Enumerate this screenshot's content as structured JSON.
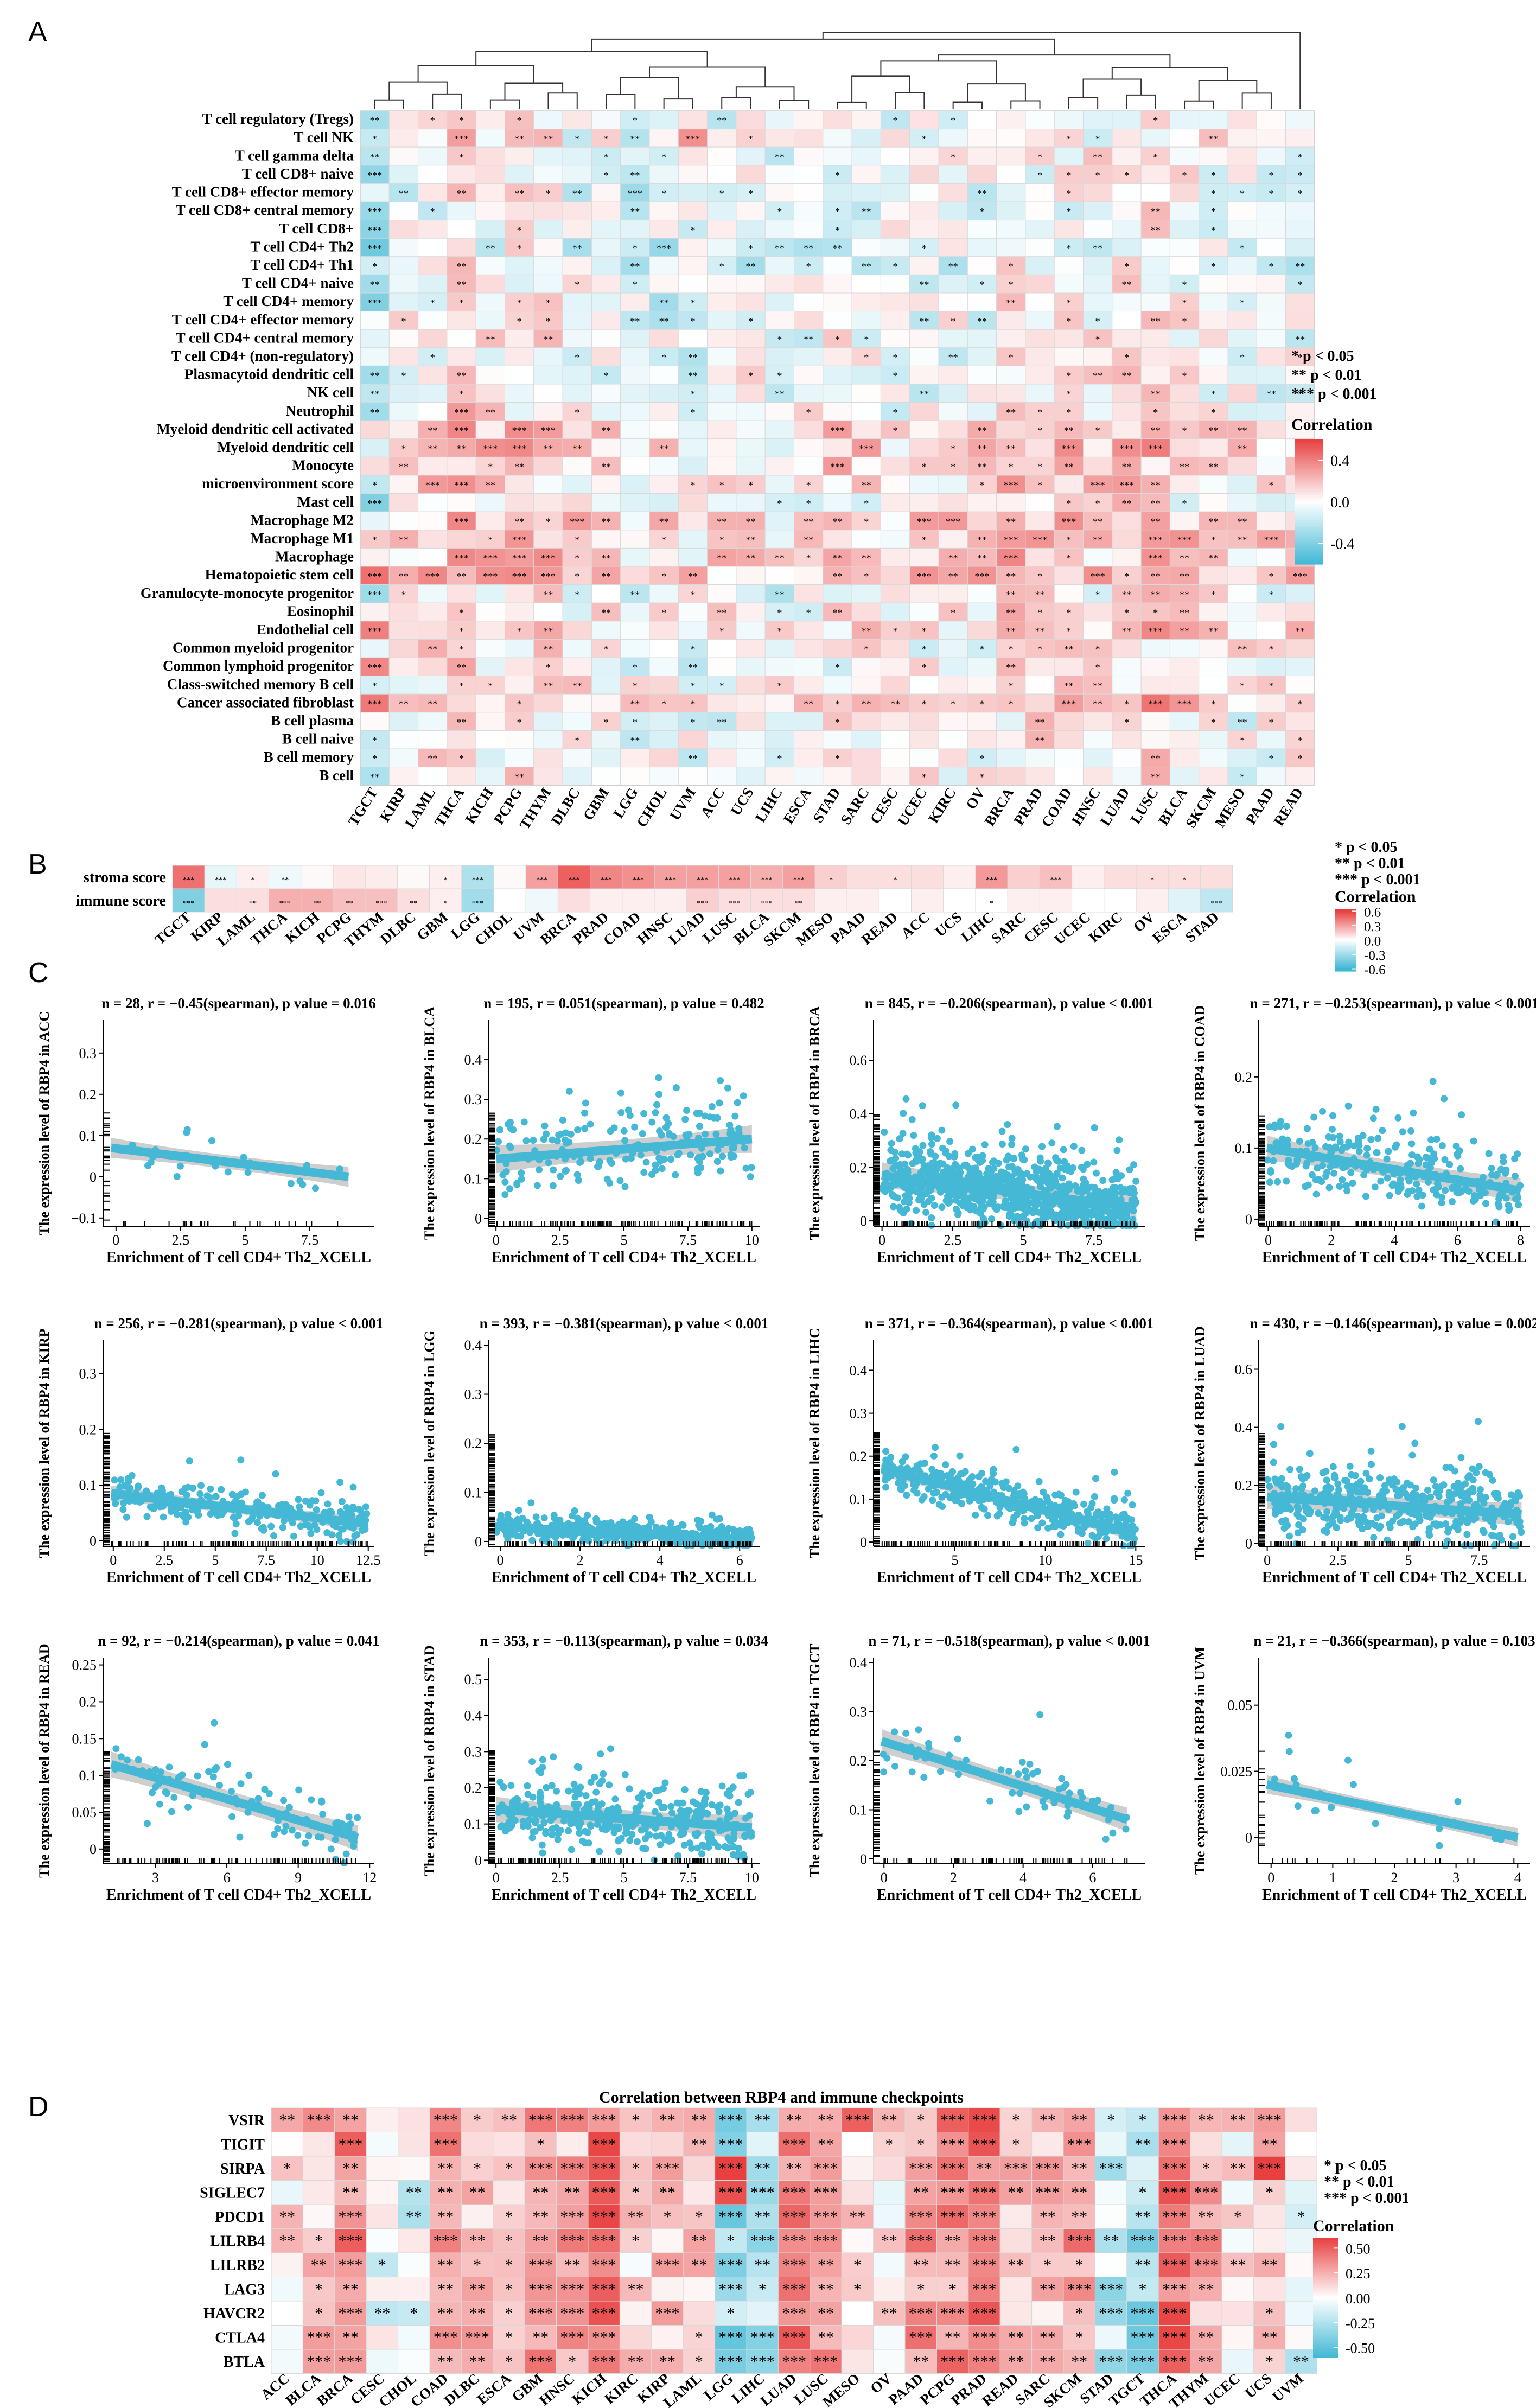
{
  "figure": {
    "panel_labels": [
      "A",
      "B",
      "C",
      "D"
    ],
    "sig_legend": [
      "*  p < 0.05",
      "**  p < 0.01",
      "***  p < 0.001"
    ]
  },
  "chart_data": [
    {
      "panel": "A",
      "type": "heatmap",
      "title": "",
      "legend_title": "Correlation",
      "legend_ticks": [
        "0.4",
        "0.0",
        "-0.4"
      ],
      "value_range": [
        -0.6,
        0.6
      ],
      "cancers": [
        "TGCT",
        "KIRP",
        "LAML",
        "THCA",
        "KICH",
        "PCPG",
        "THYM",
        "DLBC",
        "GBM",
        "LGG",
        "CHOL",
        "UVM",
        "ACC",
        "UCS",
        "LIHC",
        "ESCA",
        "STAD",
        "SARC",
        "CESC",
        "UCEC",
        "KIRC",
        "OV",
        "BRCA",
        "PRAD",
        "COAD",
        "HNSC",
        "LUAD",
        "LUSC",
        "BLCA",
        "SKCM",
        "MESO",
        "PAAD",
        "READ"
      ],
      "cell_types": [
        "T cell regulatory (Tregs)",
        "T cell NK",
        "T cell gamma delta",
        "T cell CD8+ naive",
        "T cell CD8+ effector memory",
        "T cell CD8+ central memory",
        "T cell CD8+",
        "T cell CD4+ Th2",
        "T cell CD4+ Th1",
        "T cell CD4+ naive",
        "T cell CD4+ memory",
        "T cell CD4+ effector memory",
        "T cell CD4+ central memory",
        "T cell CD4+ (non-regulatory)",
        "Plasmacytoid dendritic cell",
        "NK cell",
        "Neutrophil",
        "Myeloid dendritic cell activated",
        "Myeloid dendritic cell",
        "Monocyte",
        "microenvironment score",
        "Mast cell",
        "Macrophage M2",
        "Macrophage M1",
        "Macrophage",
        "Hematopoietic stem cell",
        "Granulocyte-monocyte progenitor",
        "Eosinophil",
        "Endothelial cell",
        "Common myeloid progenitor",
        "Common lymphoid progenitor",
        "Class-switched memory B cell",
        "Cancer associated fibroblast",
        "B cell plasma",
        "B cell naive",
        "B cell memory",
        "B cell"
      ],
      "row_bias": [
        -0.05,
        -0.02,
        0.0,
        -0.05,
        -0.08,
        -0.06,
        -0.06,
        -0.1,
        -0.1,
        -0.05,
        -0.06,
        -0.03,
        -0.03,
        -0.02,
        -0.02,
        -0.05,
        0.0,
        0.12,
        0.12,
        0.1,
        0.08,
        -0.02,
        0.14,
        0.12,
        0.12,
        0.18,
        0.0,
        0.03,
        0.1,
        0.02,
        -0.02,
        0.05,
        0.16,
        -0.02,
        -0.02,
        -0.01,
        -0.01
      ],
      "col_bias": [
        -0.12,
        0.03,
        0.05,
        0.14,
        0.06,
        0.1,
        0.08,
        0.0,
        0.0,
        -0.06,
        -0.05,
        -0.04,
        0.0,
        0.0,
        -0.06,
        0.0,
        0.04,
        0.02,
        0.0,
        0.0,
        0.0,
        0.0,
        0.1,
        0.08,
        0.06,
        0.04,
        0.1,
        0.1,
        0.06,
        0.04,
        0.0,
        0.02,
        0.0
      ],
      "fixed_cells": [
        {
          "row": 25,
          "col": 0,
          "value": 0.45
        },
        {
          "row": 28,
          "col": 0,
          "value": 0.4
        },
        {
          "row": 32,
          "col": 0,
          "value": 0.42
        },
        {
          "row": 30,
          "col": 0,
          "value": 0.38
        },
        {
          "row": 3,
          "col": 0,
          "value": -0.35
        },
        {
          "row": 7,
          "col": 0,
          "value": -0.45
        },
        {
          "row": 10,
          "col": 0,
          "value": -0.4
        },
        {
          "row": 21,
          "col": 0,
          "value": -0.4
        },
        {
          "row": 1,
          "col": 11,
          "value": 0.35
        },
        {
          "row": 25,
          "col": 11,
          "value": 0.3
        },
        {
          "row": 24,
          "col": 27,
          "value": 0.35
        },
        {
          "row": 22,
          "col": 27,
          "value": 0.3
        }
      ]
    },
    {
      "panel": "B",
      "type": "heatmap",
      "legend_title": "Correlation",
      "legend_ticks": [
        "0.6",
        "0.3",
        "0.0",
        "-0.3",
        "-0.6"
      ],
      "value_range": [
        -0.6,
        0.6
      ],
      "rows": [
        "stroma score",
        "immune score"
      ],
      "cancers": [
        "TGCT",
        "KIRP",
        "LAML",
        "THCA",
        "KICH",
        "PCPG",
        "THYM",
        "DLBC",
        "GBM",
        "LGG",
        "CHOL",
        "UVM",
        "BRCA",
        "PRAD",
        "COAD",
        "HNSC",
        "LUAD",
        "LUSC",
        "BLCA",
        "SKCM",
        "MESO",
        "PAAD",
        "READ",
        "ACC",
        "UCS",
        "LIHC",
        "SARC",
        "CESC",
        "UCEC",
        "KIRC",
        "OV",
        "ESCA",
        "STAD"
      ],
      "values": [
        [
          0.45,
          -0.08,
          0.05,
          -0.05,
          0.02,
          0.08,
          0.06,
          0.02,
          0.05,
          -0.25,
          0.02,
          0.3,
          0.5,
          0.38,
          0.35,
          0.3,
          0.3,
          0.3,
          0.25,
          0.3,
          0.15,
          0.1,
          0.1,
          0.1,
          0.05,
          0.32,
          0.15,
          0.2,
          0.05,
          0.1,
          0.1,
          0.1,
          0.1
        ],
        [
          -0.4,
          0.1,
          0.1,
          0.25,
          0.25,
          0.2,
          0.2,
          0.1,
          0.05,
          -0.3,
          0.0,
          -0.05,
          0.1,
          0.05,
          0.05,
          0.05,
          0.15,
          0.1,
          0.1,
          0.1,
          0.05,
          0.05,
          0.0,
          0.05,
          0.0,
          0.0,
          0.05,
          0.05,
          0.0,
          0.0,
          0.05,
          -0.1,
          -0.2
        ]
      ],
      "stars": [
        [
          "***",
          "***",
          "*",
          "**",
          "",
          "",
          "",
          "",
          "*",
          "***",
          "",
          "***",
          "***",
          "***",
          "***",
          "***",
          "***",
          "***",
          "***",
          "***",
          "*",
          "",
          "*",
          "",
          "",
          "***",
          "",
          "***",
          "",
          "",
          "*",
          "*",
          ""
        ],
        [
          "***",
          "",
          "**",
          "***",
          "**",
          "**",
          "***",
          "**",
          "*",
          "***",
          "",
          "",
          "",
          "",
          "",
          "",
          "***",
          "***",
          "***",
          "**",
          "",
          "",
          "",
          "",
          "",
          "*",
          "",
          "",
          "",
          "",
          "",
          "",
          "***"
        ]
      ]
    },
    {
      "panel": "C",
      "type": "scatter",
      "x_label": "Enrichment of T cell CD4+ Th2_XCELL",
      "plots": [
        {
          "cancer": "ACC",
          "title": "n = 28, r = −0.45(spearman), p value = 0.016",
          "ylabel": "The expression level of RBP4 in ACC",
          "xlim": [
            -0.5,
            10
          ],
          "ylim": [
            -0.12,
            0.38
          ],
          "xticks": [
            0,
            2.5,
            5,
            7.5
          ],
          "yticks": [
            -0.1,
            0,
            0.1,
            0.2,
            0.3
          ],
          "n": 28,
          "x_max": 9,
          "fit": [
            0.07,
            0.0
          ],
          "spread": 0.07,
          "seed": 11
        },
        {
          "cancer": "BLCA",
          "title": "n = 195, r = 0.051(spearman), p value = 0.482",
          "ylabel": "The expression level of RBP4 in BLCA",
          "xlim": [
            -0.3,
            10.3
          ],
          "ylim": [
            -0.02,
            0.5
          ],
          "xticks": [
            0,
            2.5,
            5,
            7.5,
            10
          ],
          "yticks": [
            0,
            0.1,
            0.2,
            0.3,
            0.4
          ],
          "n": 195,
          "x_max": 10,
          "fit": [
            0.15,
            0.2
          ],
          "spread": 0.1,
          "seed": 23
        },
        {
          "cancer": "BRCA",
          "title": "n = 845, r = −0.206(spearman), p value < 0.001",
          "ylabel": "The expression level of RBP4 in BRCA",
          "xlim": [
            -0.3,
            9.3
          ],
          "ylim": [
            -0.02,
            0.75
          ],
          "xticks": [
            0,
            2.5,
            5,
            7.5
          ],
          "yticks": [
            0,
            0.2,
            0.4,
            0.6
          ],
          "n": 845,
          "x_max": 9,
          "fit": [
            0.17,
            0.05
          ],
          "spread": 0.14,
          "seed": 37
        },
        {
          "cancer": "COAD",
          "title": "n = 271, r = −0.253(spearman), p value < 0.001",
          "ylabel": "The expression level of RBP4 in COAD",
          "xlim": [
            -0.3,
            8.3
          ],
          "ylim": [
            -0.01,
            0.28
          ],
          "xticks": [
            0,
            2,
            4,
            6,
            8
          ],
          "yticks": [
            0,
            0.1,
            0.2
          ],
          "n": 271,
          "x_max": 8,
          "fit": [
            0.1,
            0.04
          ],
          "spread": 0.05,
          "seed": 41
        },
        {
          "cancer": "KIRP",
          "title": "n = 256, r = −0.281(spearman), p value < 0.001",
          "ylabel": "The expression level of RBP4 in KIRP",
          "xlim": [
            -0.5,
            12.8
          ],
          "ylim": [
            -0.01,
            0.36
          ],
          "xticks": [
            0,
            2.5,
            5,
            7.5,
            10,
            12.5
          ],
          "yticks": [
            0,
            0.1,
            0.2,
            0.3
          ],
          "n": 256,
          "x_max": 12.5,
          "fit": [
            0.085,
            0.03
          ],
          "spread": 0.04,
          "seed": 53
        },
        {
          "cancer": "LGG",
          "title": "n = 393, r = −0.381(spearman), p value < 0.001",
          "ylabel": "The expression level of RBP4 in LGG",
          "xlim": [
            -0.3,
            6.5
          ],
          "ylim": [
            -0.01,
            0.41
          ],
          "xticks": [
            0,
            2,
            4,
            6
          ],
          "yticks": [
            0,
            0.1,
            0.2,
            0.3,
            0.4
          ],
          "n": 393,
          "x_max": 6.3,
          "fit": [
            0.03,
            0.003
          ],
          "spread": 0.025,
          "seed": 61
        },
        {
          "cancer": "LIHC",
          "title": "n = 371, r = −0.364(spearman), p value < 0.001",
          "ylabel": "The expression level of RBP4 in LIHC",
          "xlim": [
            0.5,
            15.5
          ],
          "ylim": [
            -0.01,
            0.47
          ],
          "xticks": [
            5,
            10,
            15
          ],
          "yticks": [
            0,
            0.1,
            0.2,
            0.3,
            0.4
          ],
          "n": 371,
          "x_max": 15,
          "fit": [
            0.17,
            0.02
          ],
          "spread": 0.05,
          "seed": 71
        },
        {
          "cancer": "LUAD",
          "title": "n = 430, r = −0.146(spearman), p value = 0.002",
          "ylabel": "The expression level of RBP4 in LUAD",
          "xlim": [
            -0.3,
            9.3
          ],
          "ylim": [
            -0.01,
            0.7
          ],
          "xticks": [
            0,
            2.5,
            5,
            7.5
          ],
          "yticks": [
            0,
            0.2,
            0.4,
            0.6
          ],
          "n": 430,
          "x_max": 9,
          "fit": [
            0.16,
            0.1
          ],
          "spread": 0.12,
          "seed": 83
        },
        {
          "cancer": "READ",
          "title": "n = 92, r = −0.214(spearman), p value = 0.041",
          "ylabel": "The expression level of RBP4 in READ",
          "xlim": [
            0.8,
            12.2
          ],
          "ylim": [
            -0.02,
            0.26
          ],
          "xticks": [
            3,
            6,
            9,
            12
          ],
          "yticks": [
            0,
            0.05,
            0.1,
            0.15,
            0.2,
            0.25
          ],
          "n": 92,
          "x_max": 11.5,
          "fit": [
            0.115,
            0.015
          ],
          "spread": 0.05,
          "seed": 97
        },
        {
          "cancer": "STAD",
          "title": "n = 353, r = −0.113(spearman), p value = 0.034",
          "ylabel": "The expression level of RBP4 in STAD",
          "xlim": [
            -0.3,
            10.3
          ],
          "ylim": [
            -0.01,
            0.56
          ],
          "xticks": [
            0,
            2.5,
            5,
            7.5,
            10
          ],
          "yticks": [
            0,
            0.1,
            0.2,
            0.3,
            0.4,
            0.5
          ],
          "n": 353,
          "x_max": 10,
          "fit": [
            0.14,
            0.09
          ],
          "spread": 0.1,
          "seed": 101
        },
        {
          "cancer": "TGCT",
          "title": "n = 71, r = −0.518(spearman), p value < 0.001",
          "ylabel": "The expression level of RBP4 in TGCT",
          "xlim": [
            -0.3,
            7.5
          ],
          "ylim": [
            -0.01,
            0.41
          ],
          "xticks": [
            0,
            2,
            4,
            6
          ],
          "yticks": [
            0,
            0.1,
            0.2,
            0.3,
            0.4
          ],
          "n": 71,
          "x_max": 7,
          "fit": [
            0.24,
            0.08
          ],
          "spread": 0.07,
          "seed": 113
        },
        {
          "cancer": "UVM",
          "title": "n = 21, r = −0.366(spearman), p value = 0.103",
          "ylabel": "The expression level of RBP4 in UVM",
          "xlim": [
            -0.2,
            4.2
          ],
          "ylim": [
            -0.01,
            0.068
          ],
          "xticks": [
            0,
            1,
            2,
            3,
            4
          ],
          "yticks": [
            0,
            0.025,
            0.05
          ],
          "n": 21,
          "x_max": 4,
          "fit": [
            0.02,
            0.0
          ],
          "spread": 0.01,
          "seed": 127
        }
      ]
    },
    {
      "panel": "D",
      "type": "heatmap",
      "title": "Correlation between RBP4 and immune checkpoints",
      "legend_title": "Correlation",
      "legend_ticks": [
        "0.50",
        "0.25",
        "0.00",
        "-0.25",
        "-0.50"
      ],
      "value_range": [
        -0.6,
        0.6
      ],
      "genes": [
        "VSIR",
        "TIGIT",
        "SIRPA",
        "SIGLEC7",
        "PDCD1",
        "LILRB4",
        "LILRB2",
        "LAG3",
        "HAVCR2",
        "CTLA4",
        "BTLA"
      ],
      "cancers": [
        "ACC",
        "BLCA",
        "BRCA",
        "CESC",
        "CHOL",
        "COAD",
        "DLBC",
        "ESCA",
        "GBM",
        "HNSC",
        "KICH",
        "KIRC",
        "KIRP",
        "LAML",
        "LGG",
        "LIHC",
        "LUAD",
        "LUSC",
        "MESO",
        "OV",
        "PAAD",
        "PCPG",
        "PRAD",
        "READ",
        "SARC",
        "SKCM",
        "STAD",
        "TGCT",
        "THCA",
        "THYM",
        "UCEC",
        "UCS",
        "UVM"
      ],
      "row_bias": [
        0.15,
        0.1,
        0.18,
        0.1,
        0.05,
        0.1,
        0.1,
        0.05,
        0.1,
        0.08,
        0.05
      ],
      "col_bias": [
        0.05,
        0.15,
        0.3,
        -0.1,
        -0.12,
        0.25,
        0.2,
        0.05,
        0.25,
        0.2,
        0.4,
        0.1,
        0.12,
        0.15,
        -0.35,
        -0.3,
        0.35,
        0.3,
        0.1,
        0.0,
        0.25,
        0.3,
        0.35,
        0.1,
        0.1,
        0.25,
        -0.2,
        -0.35,
        0.45,
        0.2,
        0.0,
        0.1,
        -0.1
      ],
      "fixed_cells": [
        {
          "row": 2,
          "col": 31,
          "value": 0.65
        },
        {
          "row": 0,
          "col": 18,
          "value": 0.5
        },
        {
          "row": 2,
          "col": 14,
          "value": 0.6
        },
        {
          "row": 3,
          "col": 14,
          "value": 0.55
        }
      ]
    }
  ]
}
